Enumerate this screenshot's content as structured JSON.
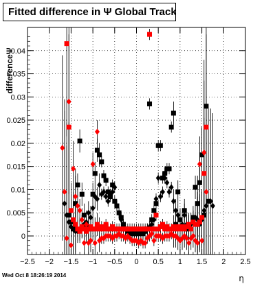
{
  "title": "Fitted difference in Ψ   Global Tracks",
  "timestamp": "Wed Oct  8 18:26:19 2014",
  "chart_data": {
    "type": "scatter",
    "title": "Fitted difference in Ψ   Global Tracks",
    "xlabel": "η",
    "ylabel": "differenceΨ",
    "xlim": [
      -2.5,
      2.5
    ],
    "ylim": [
      -0.004,
      0.045
    ],
    "xticks": [
      -2.5,
      -2,
      -1.5,
      -1,
      -0.5,
      0,
      0.5,
      1,
      1.5,
      2,
      2.5
    ],
    "xtick_labels": [
      "−2.5",
      "−2",
      "−1.5",
      "−1",
      "−0.5",
      "0",
      "0.5",
      "1",
      "1.5",
      "2",
      "2.5"
    ],
    "yticks": [
      0,
      0.005,
      0.01,
      0.015,
      0.02,
      0.025,
      0.03,
      0.035,
      0.04
    ],
    "ytick_labels": [
      "0",
      "0.005",
      "0.01",
      "0.015",
      "0.02",
      "0.025",
      "0.03",
      "0.035",
      "0.04"
    ],
    "grid": true,
    "series": [
      {
        "color": "#000000",
        "marker": "square",
        "points": [
          [
            -1.55,
            0.0045
          ],
          [
            -1.5,
            0.003
          ],
          [
            -1.45,
            0.0015
          ],
          [
            -1.4,
            0.007
          ],
          [
            -1.35,
            0.011
          ],
          [
            -1.3,
            0.0205
          ],
          [
            -1.25,
            0.009
          ],
          [
            -1.2,
            0.0045
          ],
          [
            -1.15,
            0.0025
          ],
          [
            -1.1,
            0.002
          ],
          [
            -1.05,
            0.0015
          ],
          [
            -1.0,
            0.009
          ],
          [
            -0.95,
            0.0135
          ],
          [
            -0.9,
            0.0185
          ],
          [
            -0.85,
            0.0175
          ],
          [
            -0.8,
            0.016
          ],
          [
            -0.75,
            0.013
          ],
          [
            -0.7,
            0.012
          ],
          [
            -0.65,
            0.0095
          ],
          [
            -0.6,
            0.0085
          ],
          [
            -0.55,
            0.011
          ],
          [
            -0.5,
            0.0075
          ],
          [
            -0.45,
            0.0065
          ],
          [
            -0.4,
            0.005
          ],
          [
            -0.35,
            0.004
          ],
          [
            -0.3,
            0.0025
          ],
          [
            -0.25,
            0.0015
          ],
          [
            -0.2,
            0.001
          ],
          [
            -0.15,
            0.0005
          ],
          [
            -0.1,
            0.0005
          ],
          [
            -0.05,
            0.0005
          ],
          [
            0.0,
            0.0005
          ],
          [
            0.05,
            0.0005
          ],
          [
            0.1,
            0.0005
          ],
          [
            0.15,
            0.0005
          ],
          [
            0.2,
            0.001
          ],
          [
            0.25,
            0.0015
          ],
          [
            0.3,
            0.0285
          ],
          [
            0.35,
            0.0035
          ],
          [
            0.4,
            0.0055
          ],
          [
            0.45,
            0.007
          ],
          [
            0.5,
            0.0195
          ],
          [
            0.55,
            0.0195
          ],
          [
            0.6,
            0.0125
          ],
          [
            0.65,
            0.0135
          ],
          [
            0.7,
            0.0145
          ],
          [
            0.75,
            0.0145
          ],
          [
            0.8,
            0.0235
          ],
          [
            0.85,
            0.0265
          ],
          [
            0.9,
            0.0025
          ],
          [
            0.95,
            0.0095
          ],
          [
            1.0,
            0.0035
          ],
          [
            1.1,
            0.0055
          ],
          [
            1.15,
            0.0015
          ],
          [
            1.2,
            0.002
          ],
          [
            1.3,
            0.004
          ],
          [
            1.35,
            0.0105
          ],
          [
            1.4,
            0.007
          ],
          [
            1.45,
            0.0115
          ],
          [
            1.5,
            0.0175
          ],
          [
            1.55,
            0.0045
          ],
          [
            1.6,
            0.028
          ],
          [
            1.65,
            0.0075
          ]
        ]
      },
      {
        "color": "#000000",
        "marker": "diamond",
        "points": [
          [
            -1.65,
            0.007
          ],
          [
            -1.6,
            0.0045
          ],
          [
            -1.55,
            0.003
          ],
          [
            -1.5,
            0.002
          ],
          [
            -1.45,
            0.0015
          ],
          [
            -1.4,
            0.001
          ],
          [
            -1.35,
            0.001
          ],
          [
            -1.3,
            0.0015
          ],
          [
            -1.25,
            0.002
          ],
          [
            -1.2,
            0.0025
          ],
          [
            -1.15,
            0.003
          ],
          [
            -1.1,
            0.005
          ],
          [
            -1.05,
            0.004
          ],
          [
            -1.0,
            0.006
          ],
          [
            -0.95,
            0.0085
          ],
          [
            -0.9,
            0.008
          ],
          [
            -0.85,
            0.011
          ],
          [
            -0.8,
            0.009
          ],
          [
            -0.75,
            0.0095
          ],
          [
            -0.7,
            0.0085
          ],
          [
            -0.65,
            0.0075
          ],
          [
            -0.6,
            0.009
          ],
          [
            -0.55,
            0.0095
          ],
          [
            -0.5,
            0.0105
          ],
          [
            -0.45,
            0.0065
          ],
          [
            -0.4,
            0.005
          ],
          [
            -0.35,
            0.0035
          ],
          [
            -0.3,
            0.0025
          ],
          [
            -0.25,
            0.0015
          ],
          [
            -0.2,
            0.001
          ],
          [
            -0.15,
            0.0005
          ],
          [
            -0.1,
            0.0005
          ],
          [
            -0.05,
            0.0005
          ],
          [
            0.0,
            0.0005
          ],
          [
            0.05,
            0.0005
          ],
          [
            0.1,
            0.0005
          ],
          [
            0.15,
            0.0005
          ],
          [
            0.2,
            0.001
          ],
          [
            0.25,
            0.0015
          ],
          [
            0.3,
            0.002
          ],
          [
            0.35,
            0.0025
          ],
          [
            0.4,
            0.0035
          ],
          [
            0.45,
            0.008
          ],
          [
            0.5,
            0.0125
          ],
          [
            0.55,
            0.0085
          ],
          [
            0.6,
            0.0095
          ],
          [
            0.65,
            0.0125
          ],
          [
            0.7,
            0.0115
          ],
          [
            0.75,
            0.0095
          ],
          [
            0.8,
            0.0105
          ],
          [
            0.85,
            0.0075
          ],
          [
            0.9,
            0.0055
          ],
          [
            0.95,
            0.0045
          ],
          [
            1.0,
            0.0035
          ],
          [
            1.05,
            0.0025
          ],
          [
            1.1,
            0.0045
          ],
          [
            1.15,
            0.0025
          ],
          [
            1.2,
            0.002
          ],
          [
            1.25,
            0.0025
          ],
          [
            1.3,
            0.003
          ],
          [
            1.35,
            0.004
          ],
          [
            1.4,
            0.0035
          ],
          [
            1.45,
            0.0025
          ],
          [
            1.5,
            0.0035
          ],
          [
            1.55,
            0.0055
          ],
          [
            1.6,
            0.0065
          ],
          [
            1.7,
            0.0075
          ],
          [
            1.75,
            0.0065
          ]
        ]
      },
      {
        "color": "#ff0000",
        "marker": "square",
        "points": [
          [
            -1.6,
            0.0415
          ],
          [
            -1.55,
            0.0235
          ],
          [
            -1.5,
            0.0055
          ],
          [
            -1.45,
            0.0035
          ],
          [
            -1.4,
            0.0025
          ],
          [
            -1.35,
            0.0015
          ],
          [
            -1.3,
            0.001
          ],
          [
            -1.25,
            0.002
          ],
          [
            -1.2,
            0.0015
          ],
          [
            -1.15,
            0.001
          ],
          [
            -1.1,
            0.0015
          ],
          [
            -1.05,
            0.002
          ],
          [
            -1.0,
            0.0015
          ],
          [
            -0.95,
            0.0015
          ],
          [
            -0.9,
            0.0025
          ],
          [
            -0.85,
            0.0015
          ],
          [
            -0.8,
            0.002
          ],
          [
            -0.75,
            0.0015
          ],
          [
            -0.7,
            0.0025
          ],
          [
            -0.65,
            0.0015
          ],
          [
            -0.6,
            0.0015
          ],
          [
            -0.55,
            0.002
          ],
          [
            -0.5,
            0.0015
          ],
          [
            -0.45,
            0.0015
          ],
          [
            -0.4,
            0.0015
          ],
          [
            -0.35,
            0.0015
          ],
          [
            -0.3,
            0.0015
          ],
          [
            -0.25,
            0.0015
          ],
          [
            -0.2,
            0.0015
          ],
          [
            -0.15,
            0.0015
          ],
          [
            -0.1,
            0.0015
          ],
          [
            -0.05,
            0.0015
          ],
          [
            0.0,
            0.0015
          ],
          [
            0.05,
            0.0015
          ],
          [
            0.1,
            0.0015
          ],
          [
            0.15,
            0.0015
          ],
          [
            0.2,
            0.0015
          ],
          [
            0.25,
            0.0015
          ],
          [
            0.3,
            0.0435
          ],
          [
            0.35,
            0.0015
          ],
          [
            0.4,
            0.0015
          ],
          [
            0.45,
            0.0045
          ],
          [
            0.5,
            0.0015
          ],
          [
            0.55,
            0.002
          ],
          [
            0.6,
            0.0025
          ],
          [
            0.65,
            0.0015
          ],
          [
            0.7,
            0.002
          ],
          [
            0.75,
            0.0015
          ],
          [
            0.8,
            0.0015
          ],
          [
            0.85,
            0.002
          ],
          [
            0.9,
            0.0015
          ],
          [
            0.95,
            0.002
          ],
          [
            1.0,
            0.0015
          ],
          [
            1.05,
            0.002
          ],
          [
            1.1,
            0.0015
          ],
          [
            1.15,
            0.002
          ],
          [
            1.2,
            0.0025
          ],
          [
            1.25,
            0.0015
          ],
          [
            1.3,
            0.003
          ],
          [
            1.35,
            0.0025
          ],
          [
            1.4,
            0.0025
          ],
          [
            1.45,
            0.003
          ],
          [
            1.5,
            0.004
          ],
          [
            1.55,
            0.0135
          ],
          [
            1.6,
            0.0235
          ]
        ]
      },
      {
        "color": "#ff0000",
        "marker": "diamond",
        "points": [
          [
            -1.7,
            0.019
          ],
          [
            -1.65,
            0.0095
          ],
          [
            -1.6,
            -0.0005
          ],
          [
            -1.55,
            0.029
          ],
          [
            -1.5,
            -0.002
          ],
          [
            -1.45,
            0.0145
          ],
          [
            -1.4,
            0.0085
          ],
          [
            -1.35,
            0.0065
          ],
          [
            -1.3,
            0.0055
          ],
          [
            -1.25,
            0.0035
          ],
          [
            -1.2,
            -0.0015
          ],
          [
            -1.15,
            0.0025
          ],
          [
            -1.1,
            -0.0015
          ],
          [
            -1.05,
            -0.001
          ],
          [
            -1.0,
            0.0155
          ],
          [
            -0.95,
            -0.0015
          ],
          [
            -0.9,
            0.0225
          ],
          [
            -0.85,
            -0.001
          ],
          [
            -0.8,
            -0.0005
          ],
          [
            -0.75,
            -0.0005
          ],
          [
            -0.7,
            0.0
          ],
          [
            -0.65,
            0.0
          ],
          [
            -0.6,
            0.0
          ],
          [
            -0.55,
            -0.0005
          ],
          [
            -0.5,
            0.0
          ],
          [
            -0.45,
            0.0
          ],
          [
            -0.4,
            0.0005
          ],
          [
            -0.35,
            0.0
          ],
          [
            -0.3,
            0.0
          ],
          [
            -0.25,
            -0.0005
          ],
          [
            -0.2,
            0.0
          ],
          [
            -0.15,
            -0.0005
          ],
          [
            -0.1,
            -0.001
          ],
          [
            -0.05,
            -0.001
          ],
          [
            0.0,
            -0.001
          ],
          [
            0.05,
            -0.0015
          ],
          [
            0.1,
            -0.001
          ],
          [
            0.15,
            -0.0015
          ],
          [
            0.2,
            -0.0015
          ],
          [
            0.25,
            -0.0005
          ],
          [
            0.3,
            0.0
          ],
          [
            0.35,
            0.0005
          ],
          [
            0.4,
            -0.001
          ],
          [
            0.45,
            0.0
          ],
          [
            0.5,
            0.0
          ],
          [
            0.55,
            0.0
          ],
          [
            0.6,
            -0.0005
          ],
          [
            0.65,
            0.0
          ],
          [
            0.7,
            0.0
          ],
          [
            0.75,
            0.0
          ],
          [
            0.8,
            0.0005
          ],
          [
            0.85,
            0.0
          ],
          [
            0.9,
            0.0
          ],
          [
            0.95,
            -0.0005
          ],
          [
            1.0,
            -0.001
          ],
          [
            1.05,
            -0.0005
          ],
          [
            1.1,
            0.0
          ],
          [
            1.15,
            -0.0005
          ],
          [
            1.2,
            -0.0015
          ],
          [
            1.25,
            -0.0005
          ],
          [
            1.3,
            0.0
          ],
          [
            1.35,
            -0.001
          ],
          [
            1.4,
            -0.0015
          ],
          [
            1.45,
            0.0155
          ],
          [
            1.5,
            -0.001
          ],
          [
            1.55,
            0.018
          ],
          [
            1.6,
            0.0095
          ]
        ]
      }
    ]
  }
}
